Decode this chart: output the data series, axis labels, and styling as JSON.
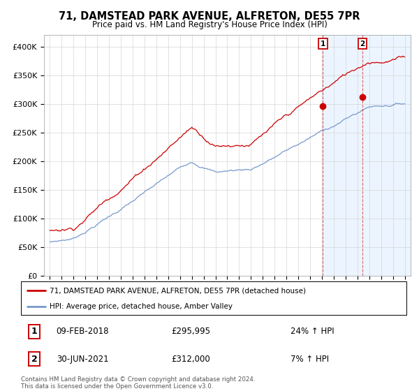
{
  "title": "71, DAMSTEAD PARK AVENUE, ALFRETON, DE55 7PR",
  "subtitle": "Price paid vs. HM Land Registry's House Price Index (HPI)",
  "ylim": [
    0,
    420000
  ],
  "yticks": [
    0,
    50000,
    100000,
    150000,
    200000,
    250000,
    300000,
    350000,
    400000
  ],
  "ytick_labels": [
    "£0",
    "£50K",
    "£100K",
    "£150K",
    "£200K",
    "£250K",
    "£300K",
    "£350K",
    "£400K"
  ],
  "xmin": 1995,
  "xmax": 2025,
  "sale1_x": 2018.08,
  "sale1_y": 295995,
  "sale2_x": 2021.42,
  "sale2_y": 312000,
  "legend_line1": "71, DAMSTEAD PARK AVENUE, ALFRETON, DE55 7PR (detached house)",
  "legend_line2": "HPI: Average price, detached house, Amber Valley",
  "sale1_date_str": "09-FEB-2018",
  "sale1_price_str": "£295,995",
  "sale1_pct": "24% ↑ HPI",
  "sale2_date_str": "30-JUN-2021",
  "sale2_price_str": "£312,000",
  "sale2_pct": "7% ↑ HPI",
  "footer": "Contains HM Land Registry data © Crown copyright and database right 2024.\nThis data is licensed under the Open Government Licence v3.0.",
  "red_color": "#cc0000",
  "blue_color": "#7799cc",
  "shade_color": "#ddeeff",
  "bg_color": "#ffffff",
  "grid_color": "#cccccc"
}
